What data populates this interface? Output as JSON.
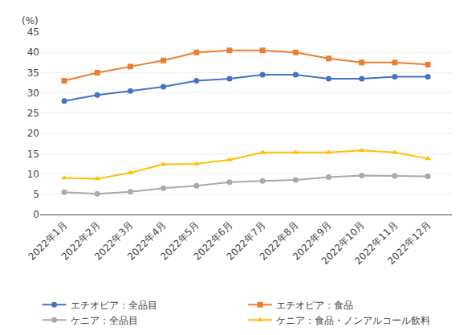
{
  "chart_data": {
    "type": "line",
    "ylabel": "(%)",
    "categories": [
      "2022年1月",
      "2022年2月",
      "2022年3月",
      "2022年4月",
      "2022年5月",
      "2022年6月",
      "2022年7月",
      "2022年8月",
      "2022年9月",
      "2022年10月",
      "2022年11月",
      "2022年12月"
    ],
    "series": [
      {
        "name": "エチオピア：全品目",
        "color": "#4472C4",
        "marker": "circle",
        "values": [
          28.0,
          29.5,
          30.5,
          31.5,
          33.0,
          33.5,
          34.5,
          34.5,
          33.5,
          33.5,
          34.0,
          34.0
        ]
      },
      {
        "name": "エチオピア：食品",
        "color": "#ED7D31",
        "marker": "square",
        "values": [
          33.0,
          35.0,
          36.5,
          38.0,
          40.0,
          40.5,
          40.5,
          40.0,
          38.5,
          37.5,
          37.5,
          37.0
        ]
      },
      {
        "name": "ケニア：全品目",
        "color": "#A9A9A9",
        "marker": "circle",
        "values": [
          5.5,
          5.1,
          5.6,
          6.5,
          7.1,
          8.0,
          8.3,
          8.5,
          9.2,
          9.6,
          9.5,
          9.4
        ]
      },
      {
        "name": "ケニア：食品・ノンアルコール飲料",
        "color": "#FFC000",
        "marker": "triangle-up",
        "values": [
          9.0,
          8.8,
          10.3,
          12.4,
          12.5,
          13.5,
          15.3,
          15.3,
          15.3,
          15.8,
          15.3,
          13.8
        ]
      }
    ],
    "ylim": [
      0,
      45
    ],
    "yticks": [
      0,
      5,
      10,
      15,
      20,
      25,
      30,
      35,
      40,
      45
    ],
    "grid": true,
    "legend": "bottom"
  }
}
